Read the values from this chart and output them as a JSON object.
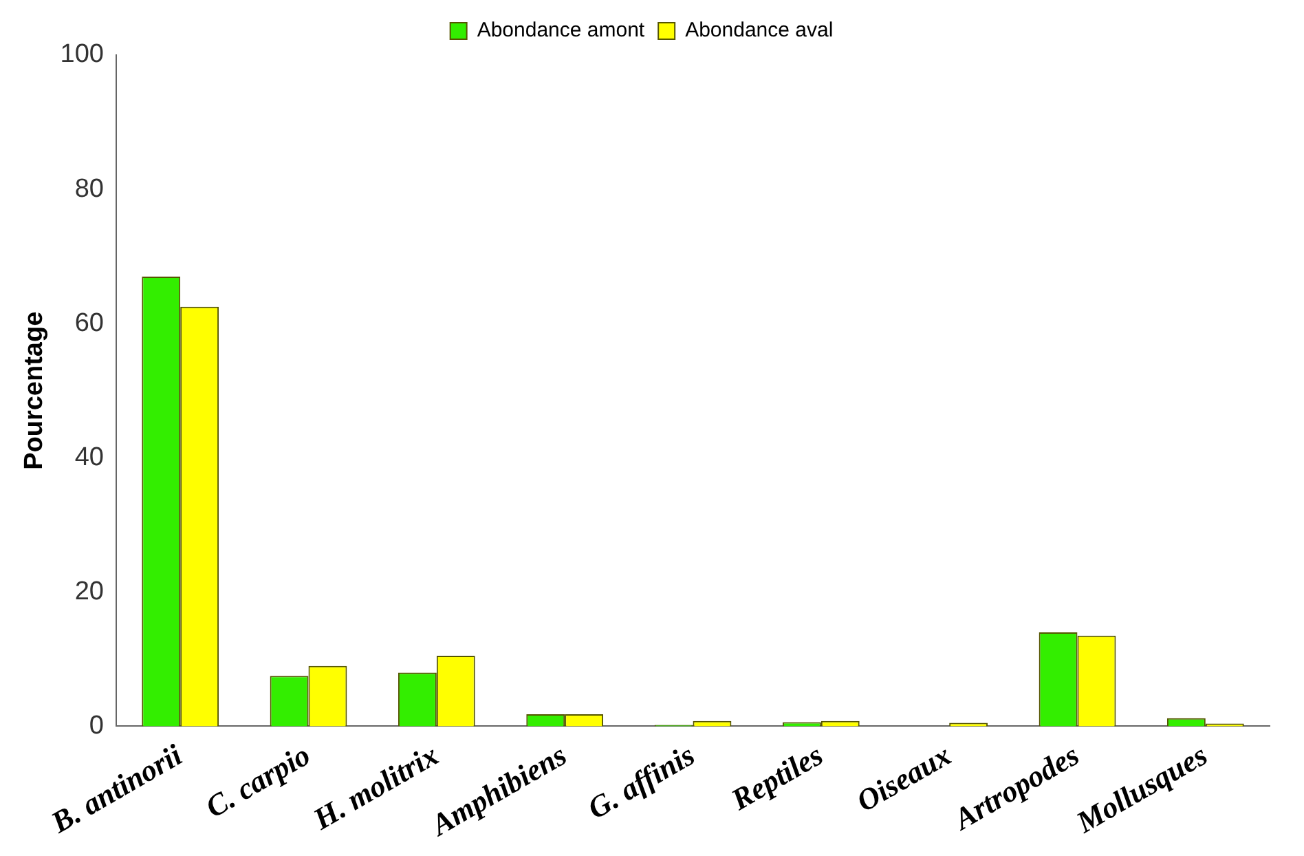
{
  "chart_data": {
    "type": "bar",
    "ylabel": "Pourcentage",
    "categories": [
      "B. antinorii",
      "C. carpio",
      "H. molitrix",
      "Amphibiens",
      "G. affinis",
      "Reptiles",
      "Oiseaux",
      "Artropodes",
      "Mollusques"
    ],
    "series": [
      {
        "name": "Abondance amont",
        "color": "#33ee00",
        "values": [
          67,
          7.5,
          8,
          1.8,
          0.2,
          0.6,
          0,
          14,
          1.2
        ]
      },
      {
        "name": "Abondance aval",
        "color": "#ffff00",
        "values": [
          62.5,
          9,
          10.5,
          1.8,
          0.8,
          0.8,
          0.5,
          13.5,
          0.4
        ]
      }
    ],
    "ylim": [
      0,
      100
    ],
    "yticks": [
      0,
      20,
      40,
      60,
      80,
      100
    ],
    "grid": false,
    "legend": "top"
  }
}
